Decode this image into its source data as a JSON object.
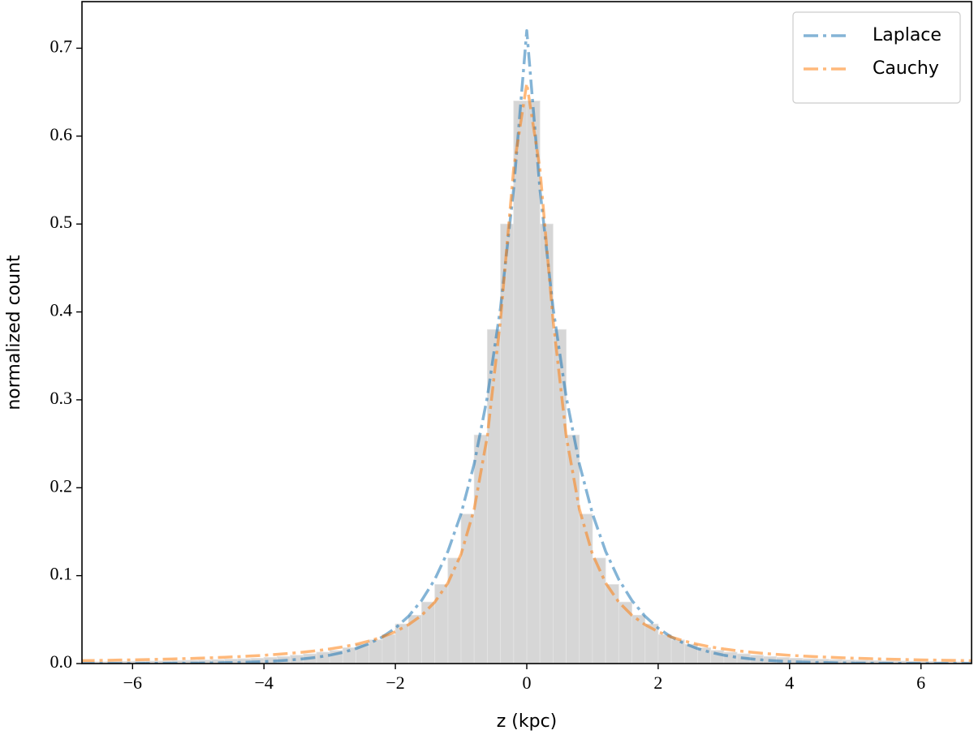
{
  "chart_data": {
    "type": "histogram",
    "xlabel": "z (kpc)",
    "ylabel": "normalized count",
    "bins": [
      -6.8,
      -6.6,
      -6.4,
      -6.2,
      -6.0,
      -5.8,
      -5.6,
      -5.4,
      -5.2,
      -5.0,
      -4.8,
      -4.6,
      -4.4,
      -4.2,
      -4.0,
      -3.8,
      -3.6,
      -3.4,
      -3.2,
      -3.0,
      -2.8,
      -2.6,
      -2.4,
      -2.2,
      -2.0,
      -1.8,
      -1.6,
      -1.4,
      -1.2,
      -1.0,
      -0.8,
      -0.6,
      -0.4,
      -0.2,
      0,
      0.2,
      0.4,
      0.6,
      0.8,
      1.0,
      1.2,
      1.4,
      1.6,
      1.8,
      2.0,
      2.2,
      2.4,
      2.6,
      2.8,
      3.0,
      3.2,
      3.4,
      3.6,
      3.8,
      4.0,
      4.2,
      4.4,
      4.6,
      4.8,
      5.0,
      5.2,
      5.4,
      5.6,
      5.8,
      6.0,
      6.2,
      6.4,
      6.6,
      6.8
    ],
    "counts": [
      0.0019,
      0.002,
      0.0022,
      0.0024,
      0.0026,
      0.0028,
      0.003,
      0.0034,
      0.0037,
      0.004,
      0.0045,
      0.005,
      0.0055,
      0.006,
      0.007,
      0.008,
      0.0095,
      0.011,
      0.013,
      0.015,
      0.018,
      0.022,
      0.027,
      0.033,
      0.045,
      0.055,
      0.07,
      0.09,
      0.12,
      0.17,
      0.26,
      0.38,
      0.5,
      0.64,
      0.64,
      0.5,
      0.38,
      0.26,
      0.17,
      0.12,
      0.09,
      0.07,
      0.055,
      0.045,
      0.033,
      0.027,
      0.022,
      0.018,
      0.015,
      0.013,
      0.011,
      0.0095,
      0.008,
      0.007,
      0.006,
      0.0055,
      0.005,
      0.0045,
      0.004,
      0.0037,
      0.0034,
      0.003,
      0.0028,
      0.0026,
      0.0024,
      0.0022,
      0.002,
      0.0019
    ],
    "hist_color": "#d6d6d6",
    "x": [
      -6.8,
      -6.6,
      -6.4,
      -6.2,
      -6.0,
      -5.8,
      -5.6,
      -5.4,
      -5.2,
      -5.0,
      -4.8,
      -4.6,
      -4.4,
      -4.2,
      -4.0,
      -3.8,
      -3.6,
      -3.4,
      -3.2,
      -3.0,
      -2.8,
      -2.6,
      -2.4,
      -2.2,
      -2.0,
      -1.8,
      -1.6,
      -1.4,
      -1.2,
      -1.0,
      -0.8,
      -0.6,
      -0.4,
      -0.2,
      0,
      0.2,
      0.4,
      0.6,
      0.8,
      1.0,
      1.2,
      1.4,
      1.6,
      1.8,
      2.0,
      2.2,
      2.4,
      2.6,
      2.8,
      3.0,
      3.2,
      3.4,
      3.6,
      3.8,
      4.0,
      4.2,
      4.4,
      4.6,
      4.8,
      5.0,
      5.2,
      5.4,
      5.6,
      5.8,
      6.0,
      6.2,
      6.4,
      6.6,
      6.8
    ],
    "series": [
      {
        "name": "Laplace",
        "color": "#1f77b4",
        "values": [
          0,
          0.0001,
          0.0001,
          0.0001,
          0.0001,
          0.0002,
          0.0002,
          0.0003,
          0.0004,
          0.0005,
          0.0007,
          0.001,
          0.0013,
          0.0017,
          0.0023,
          0.003,
          0.004,
          0.0054,
          0.0071,
          0.0095,
          0.0127,
          0.017,
          0.0227,
          0.0302,
          0.0403,
          0.0538,
          0.0718,
          0.0957,
          0.1277,
          0.1704,
          0.2273,
          0.3033,
          0.4046,
          0.5397,
          0.72,
          0.5397,
          0.4046,
          0.3033,
          0.2273,
          0.1704,
          0.1277,
          0.0957,
          0.0718,
          0.0538,
          0.0403,
          0.0302,
          0.0227,
          0.017,
          0.0127,
          0.0095,
          0.0071,
          0.0054,
          0.004,
          0.003,
          0.0023,
          0.0017,
          0.0013,
          0.001,
          0.0007,
          0.0005,
          0.0004,
          0.0003,
          0.0002,
          0.0002,
          0.0001,
          0.0001,
          0.0001,
          0.0001,
          0
        ]
      },
      {
        "name": "Cauchy",
        "color": "#ff7f0e",
        "values": [
          0.0033,
          0.0035,
          0.0037,
          0.004,
          0.0042,
          0.0045,
          0.0049,
          0.0052,
          0.0056,
          0.0061,
          0.0066,
          0.0072,
          0.0078,
          0.0086,
          0.0094,
          0.0105,
          0.0116,
          0.013,
          0.0146,
          0.0166,
          0.019,
          0.0219,
          0.0256,
          0.0302,
          0.0362,
          0.0442,
          0.0549,
          0.0699,
          0.0917,
          0.1244,
          0.1758,
          0.2589,
          0.3908,
          0.563,
          0.66,
          0.563,
          0.3908,
          0.2589,
          0.1758,
          0.1244,
          0.0917,
          0.0699,
          0.0549,
          0.0442,
          0.0362,
          0.0302,
          0.0256,
          0.0219,
          0.019,
          0.0166,
          0.0146,
          0.013,
          0.0116,
          0.0105,
          0.0094,
          0.0086,
          0.0078,
          0.0072,
          0.0066,
          0.0061,
          0.0056,
          0.0052,
          0.0049,
          0.0045,
          0.0042,
          0.004,
          0.0037,
          0.0035,
          0.0033
        ]
      }
    ],
    "xlim": [
      -6.77,
      6.77
    ],
    "ylim": [
      0,
      0.753
    ],
    "xticks": [
      {
        "value": -6,
        "label": "−6"
      },
      {
        "value": -4,
        "label": "−4"
      },
      {
        "value": -2,
        "label": "−2"
      },
      0,
      2,
      4,
      6
    ],
    "yticks": [
      {
        "value": 0,
        "label": "0.0"
      },
      0.1,
      0.2,
      0.3,
      0.4,
      0.5,
      0.6,
      0.7
    ],
    "legend": "upper right",
    "grid": false
  }
}
